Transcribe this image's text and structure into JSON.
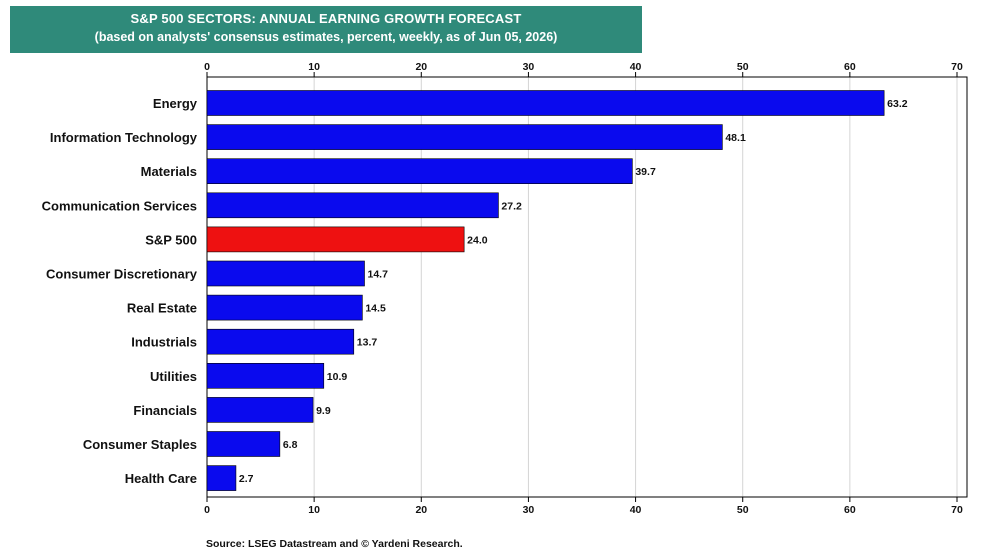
{
  "chart_data": {
    "type": "bar",
    "orientation": "horizontal",
    "title": "S&P 500 SECTORS: ANNUAL EARNING GROWTH FORECAST",
    "subtitle": "(based on analysts' consensus estimates, percent, weekly, as of Jun 05, 2026)",
    "categories": [
      "Energy",
      "Information Technology",
      "Materials",
      "Communication Services",
      "S&P 500",
      "Consumer Discretionary",
      "Real Estate",
      "Industrials",
      "Utilities",
      "Financials",
      "Consumer Staples",
      "Health Care"
    ],
    "values": [
      63.2,
      48.1,
      39.7,
      27.2,
      24.0,
      14.7,
      14.5,
      13.7,
      10.9,
      9.9,
      6.8,
      2.7
    ],
    "value_labels": [
      "63.2",
      "48.1",
      "39.7",
      "27.2",
      "24.0",
      "14.7",
      "14.5",
      "13.7",
      "10.9",
      "9.9",
      "6.8",
      "2.7"
    ],
    "highlight": "S&P 500",
    "xlim": [
      0,
      70
    ],
    "xticks": [
      0,
      10,
      20,
      30,
      40,
      50,
      60,
      70
    ],
    "xlabel": "",
    "ylabel": "",
    "grid": "vertical",
    "axis_position": "top and bottom",
    "colors": {
      "bar": "#0a0aee",
      "highlight_bar": "#ee1111",
      "title_bg": "#2f8a7a",
      "grid": "#d4d4d4"
    }
  },
  "source": "Source: LSEG Datastream and © Yardeni Research."
}
